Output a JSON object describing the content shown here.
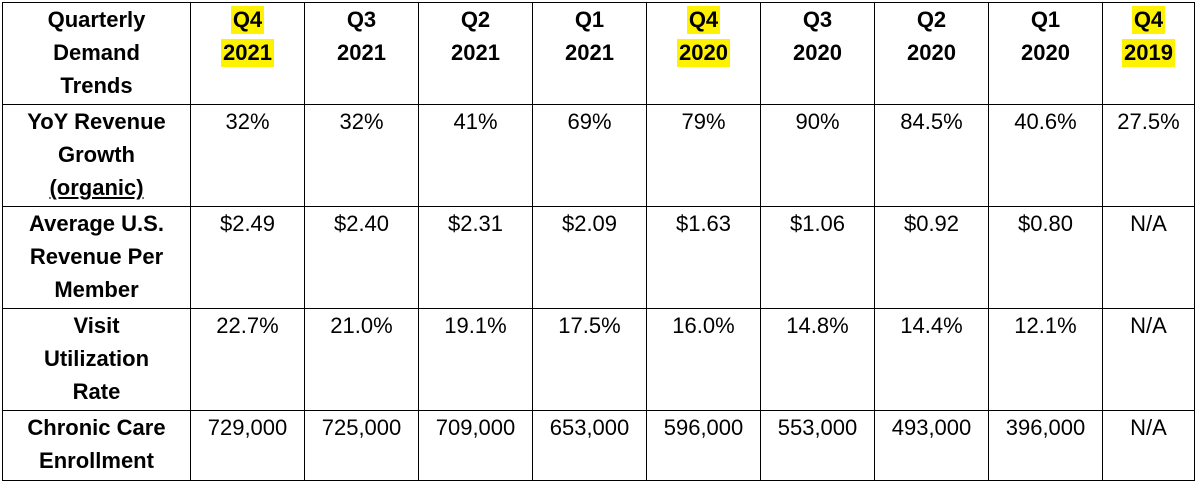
{
  "chart_data": {
    "type": "table",
    "title": "",
    "header_label": [
      "Quarterly",
      "Demand",
      "Trends"
    ],
    "columns": [
      {
        "quarter": "Q4",
        "year": "2021",
        "highlighted": true
      },
      {
        "quarter": "Q3",
        "year": "2021",
        "highlighted": false
      },
      {
        "quarter": "Q2",
        "year": "2021",
        "highlighted": false
      },
      {
        "quarter": "Q1",
        "year": "2021",
        "highlighted": false
      },
      {
        "quarter": "Q4",
        "year": "2020",
        "highlighted": true
      },
      {
        "quarter": "Q3",
        "year": "2020",
        "highlighted": false
      },
      {
        "quarter": "Q2",
        "year": "2020",
        "highlighted": false
      },
      {
        "quarter": "Q1",
        "year": "2020",
        "highlighted": false
      },
      {
        "quarter": "Q4",
        "year": "2019",
        "highlighted": true
      }
    ],
    "rows": [
      {
        "label": [
          "YoY Revenue",
          "Growth",
          "(organic)"
        ],
        "values": [
          "32%",
          "32%",
          "41%",
          "69%",
          "79%",
          "90%",
          "84.5%",
          "40.6%",
          "27.5%"
        ]
      },
      {
        "label": [
          "Average U.S.",
          "Revenue Per",
          "Member"
        ],
        "values": [
          "$2.49",
          "$2.40",
          "$2.31",
          "$2.09",
          "$1.63",
          "$1.06",
          "$0.92",
          "$0.80",
          "N/A"
        ]
      },
      {
        "label": [
          "Visit",
          "Utilization",
          "Rate"
        ],
        "values": [
          "22.7%",
          "21.0%",
          "19.1%",
          "17.5%",
          "16.0%",
          "14.8%",
          "14.4%",
          "12.1%",
          "N/A"
        ]
      },
      {
        "label": [
          "Chronic Care",
          "Enrollment"
        ],
        "values": [
          "729,000",
          "725,000",
          "709,000",
          "653,000",
          "596,000",
          "553,000",
          "493,000",
          "396,000",
          "N/A"
        ]
      }
    ],
    "highlight_color": "#fff200"
  }
}
